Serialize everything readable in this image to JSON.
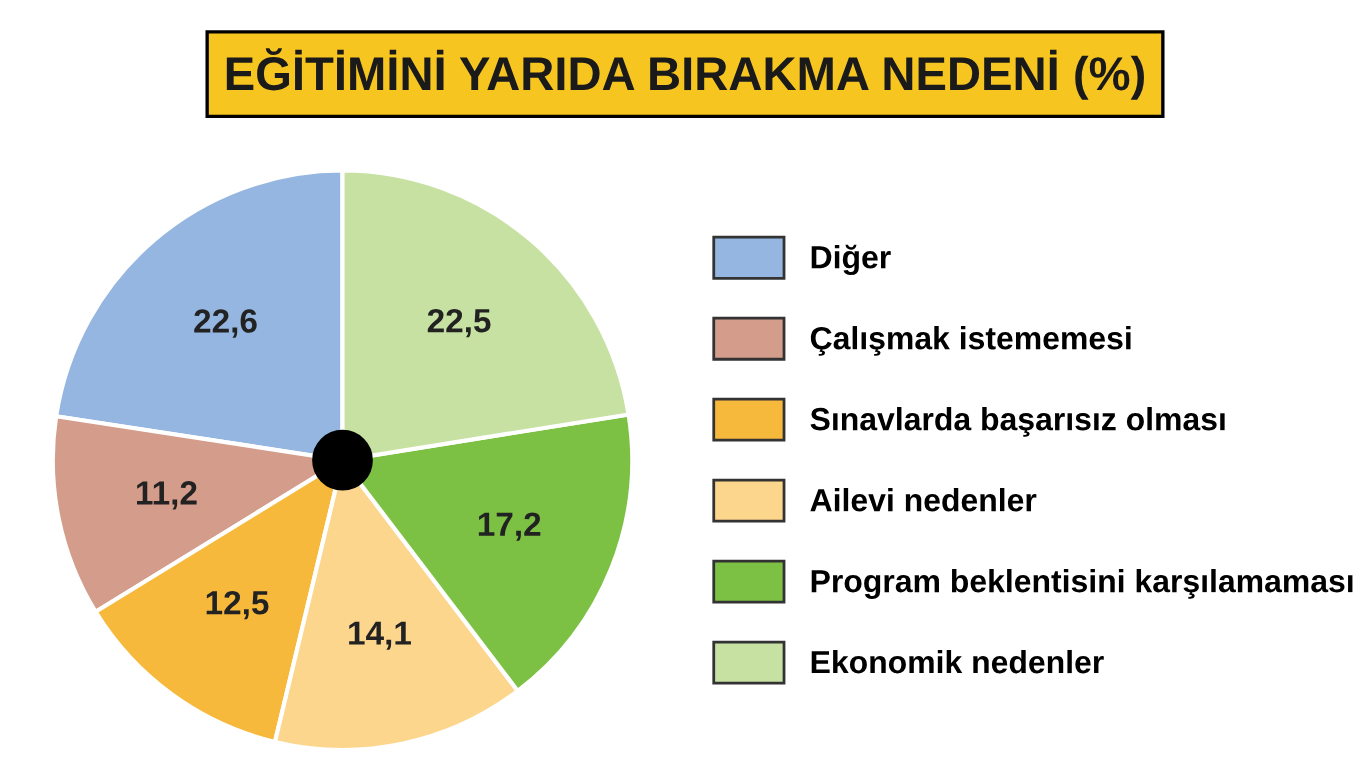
{
  "chart_data": {
    "type": "pie",
    "title": "EĞİTİMİNİ YARIDA BIRAKMA NEDENİ (%)",
    "categories": [
      "Diğer",
      "Çalışmak istememesi",
      "Sınavlarda başarısız olması",
      "Ailevi nedenler",
      "Program beklentisini karşılamaması",
      "Ekonomik nedenler"
    ],
    "values": [
      22.6,
      11.2,
      12.5,
      14.1,
      17.2,
      22.5
    ],
    "colors": [
      "#94b6e0",
      "#d49c8a",
      "#f6b93c",
      "#fcd68c",
      "#7cc144",
      "#c6e1a2"
    ],
    "value_labels": [
      "22,6",
      "11,2",
      "12,5",
      "14,1",
      "17,2",
      "22,5"
    ],
    "legend": "right"
  }
}
